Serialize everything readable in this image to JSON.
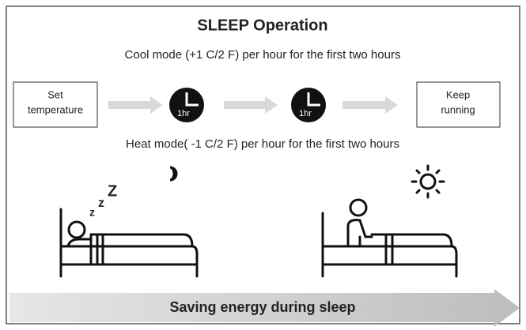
{
  "title": "SLEEP Operation",
  "cool_mode": "Cool mode (+1 C/2 F) per hour for the first two hours",
  "heat_mode": "Heat mode( -1 C/2 F) per hour for the first two hours",
  "flow": {
    "start": {
      "lines": [
        "Set",
        "temperature"
      ]
    },
    "steps": [
      {
        "label": "1hr"
      },
      {
        "label": "1hr"
      }
    ],
    "end": {
      "lines": [
        "Keep",
        "running"
      ]
    }
  },
  "sleep_letters": [
    "z",
    "z",
    "Z"
  ],
  "footer": "Saving energy during sleep"
}
